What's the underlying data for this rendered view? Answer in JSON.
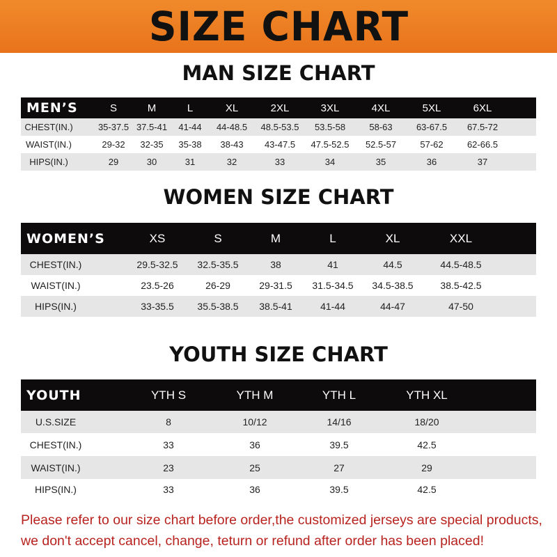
{
  "banner": {
    "title": "SIZE CHART"
  },
  "men": {
    "title": "MAN SIZE CHART",
    "header": [
      "MEN’S",
      "S",
      "M",
      "L",
      "XL",
      "2XL",
      "3XL",
      "4XL",
      "5XL",
      "6XL"
    ],
    "rows": [
      [
        "CHEST(IN.)",
        "35-37.5",
        "37.5-41",
        "41-44",
        "44-48.5",
        "48.5-53.5",
        "53.5-58",
        "58-63",
        "63-67.5",
        "67.5-72"
      ],
      [
        "WAIST(IN.)",
        "29-32",
        "32-35",
        "35-38",
        "38-43",
        "43-47.5",
        "47.5-52.5",
        "52.5-57",
        "57-62",
        "62-66.5"
      ],
      [
        "HIPS(IN.)",
        "29",
        "30",
        "31",
        "32",
        "33",
        "34",
        "35",
        "36",
        "37"
      ]
    ]
  },
  "women": {
    "title": "WOMEN SIZE CHART",
    "header": [
      "WOMEN’S",
      "XS",
      "S",
      "M",
      "L",
      "XL",
      "XXL"
    ],
    "rows": [
      [
        "CHEST(IN.)",
        "29.5-32.5",
        "32.5-35.5",
        "38",
        "41",
        "44.5",
        "44.5-48.5"
      ],
      [
        "WAIST(IN.)",
        "23.5-26",
        "26-29",
        "29-31.5",
        "31.5-34.5",
        "34.5-38.5",
        "38.5-42.5"
      ],
      [
        "HIPS(IN.)",
        "33-35.5",
        "35.5-38.5",
        "38.5-41",
        "41-44",
        "44-47",
        "47-50"
      ]
    ]
  },
  "youth": {
    "title": "YOUTH SIZE CHART",
    "header": [
      "YOUTH",
      "YTH S",
      "YTH M",
      "YTH L",
      "YTH XL"
    ],
    "rows": [
      [
        "U.S.SIZE",
        "8",
        "10/12",
        "14/16",
        "18/20"
      ],
      [
        "CHEST(IN.)",
        "33",
        "36",
        "39.5",
        "42.5"
      ],
      [
        "WAIST(IN.)",
        "23",
        "25",
        "27",
        "29"
      ],
      [
        "HIPS(IN.)",
        "33",
        "36",
        "39.5",
        "42.5"
      ]
    ]
  },
  "note": {
    "line1": "Please refer to our size chart before order,the customized jerseys are special products,",
    "line2": "we don't accept cancel, change, teturn or refund after order has been placed!"
  },
  "colors": {
    "banner": "#ee7f24",
    "header_row": "#0d0b0b",
    "note": "#b8231f"
  }
}
